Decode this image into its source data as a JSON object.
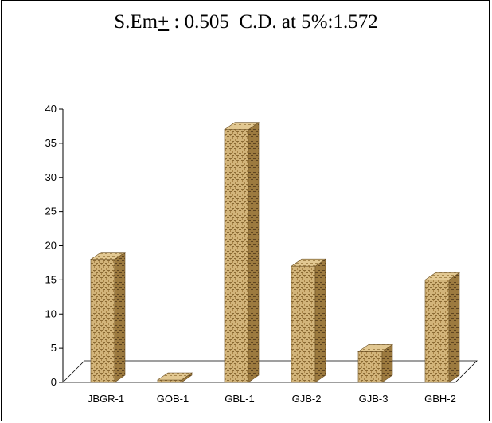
{
  "title": {
    "prefix": "S.Em",
    "pm": "+",
    "rest": " : 0.505  C.D. at 5%:1.572"
  },
  "chart_data": {
    "type": "bar",
    "categories": [
      "JBGR-1",
      "GOB-1",
      "GBL-1",
      "GJB-2",
      "GJB-3",
      "GBH-2"
    ],
    "values": [
      18,
      0,
      37,
      17,
      4.5,
      15
    ],
    "ylim": [
      0,
      40
    ],
    "yticks": [
      0,
      5,
      10,
      15,
      20,
      25,
      30,
      35,
      40
    ],
    "xlabel": "",
    "ylabel": "",
    "grid": false,
    "legend": "none",
    "colors": {
      "bar_front": "#c9a86a",
      "bar_side": "#8c6a33",
      "bar_top": "#dcc083",
      "pattern_dark": "#7a5a28"
    }
  }
}
